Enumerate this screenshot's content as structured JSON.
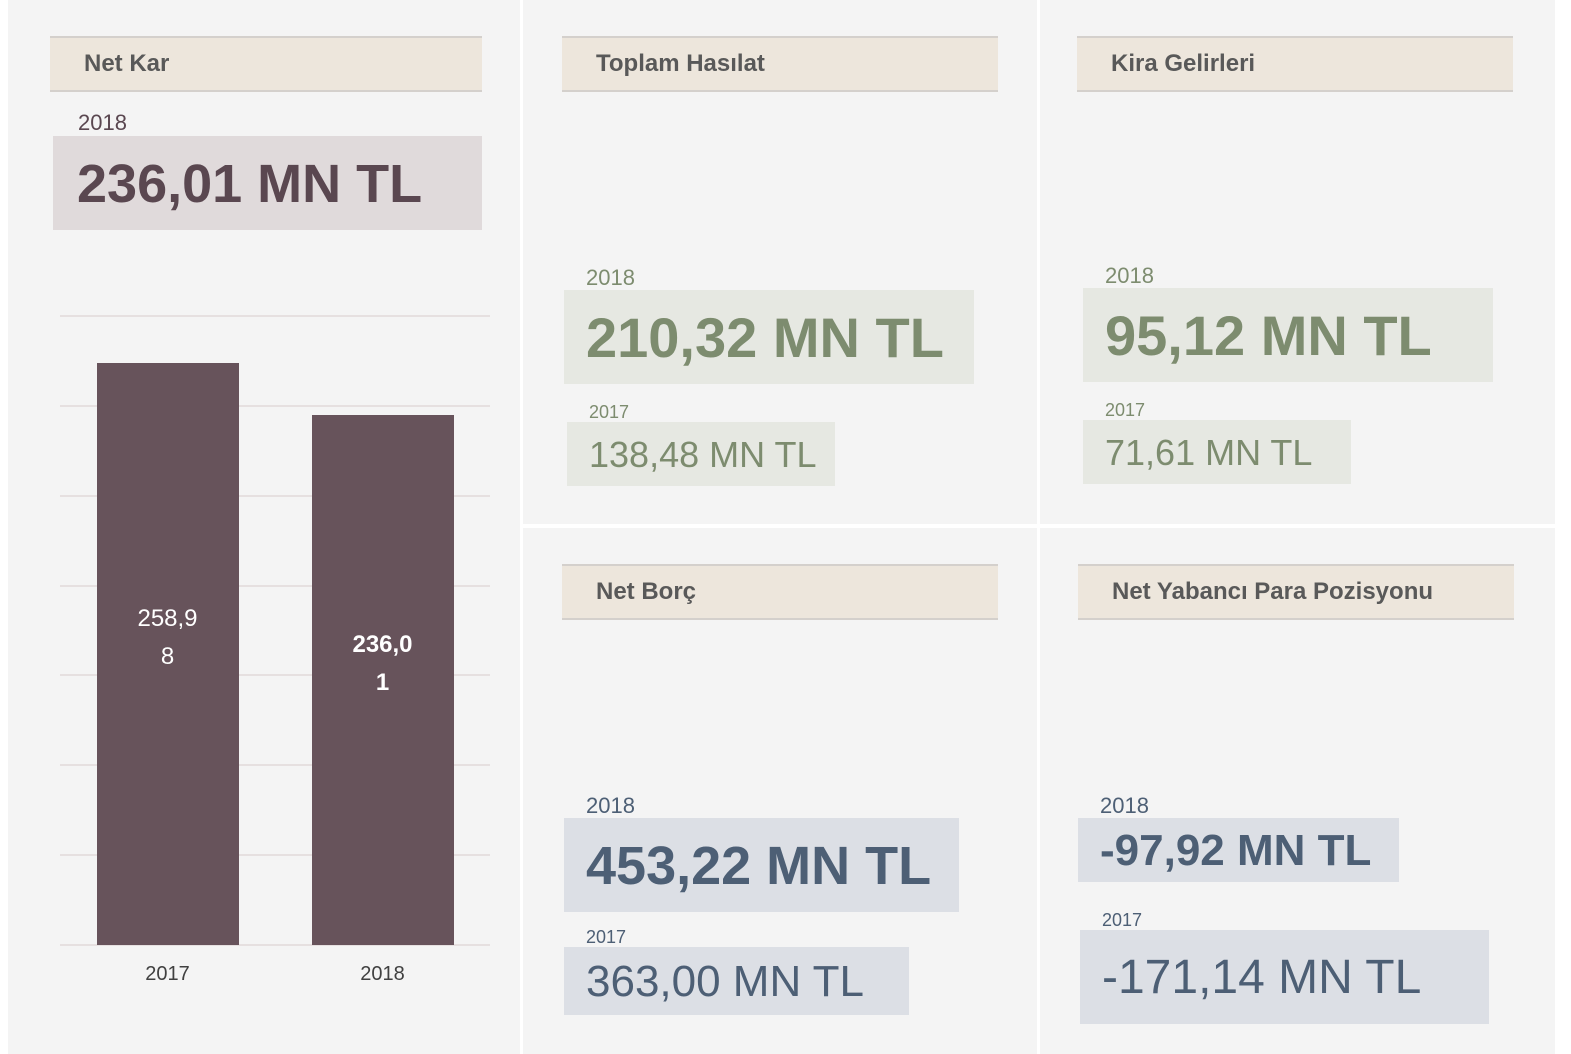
{
  "net_kar": {
    "title": "Net Kar",
    "year": "2018",
    "value": "236,01 MN TL"
  },
  "chart_data": {
    "type": "bar",
    "categories": [
      "2017",
      "2018"
    ],
    "values": [
      258.98,
      236.01
    ],
    "value_labels": [
      "258,98",
      "236,01"
    ],
    "color": "#67535b",
    "ylim": [
      0,
      280
    ],
    "yticks": [
      0,
      40,
      80,
      120,
      160,
      200,
      240,
      280
    ],
    "grid": true
  },
  "cards": [
    {
      "title": "Toplam Hasılat",
      "current_year": "2018",
      "current": "210,32 MN TL",
      "previous_year": "2017",
      "previous": "138,48 MN TL"
    },
    {
      "title": "Kira Gelirleri",
      "current_year": "2018",
      "current": "95,12 MN TL",
      "previous_year": "2017",
      "previous": "71,61 MN TL"
    },
    {
      "title": "Net Borç",
      "current_year": "2018",
      "current": "453,22 MN TL",
      "previous_year": "2017",
      "previous": "363,00 MN TL"
    },
    {
      "title": "Net Yabancı Para Pozisyonu",
      "current_year": "2018",
      "current": "-97,92 MN TL",
      "previous_year": "2017",
      "previous": "-171,14 MN TL"
    }
  ]
}
